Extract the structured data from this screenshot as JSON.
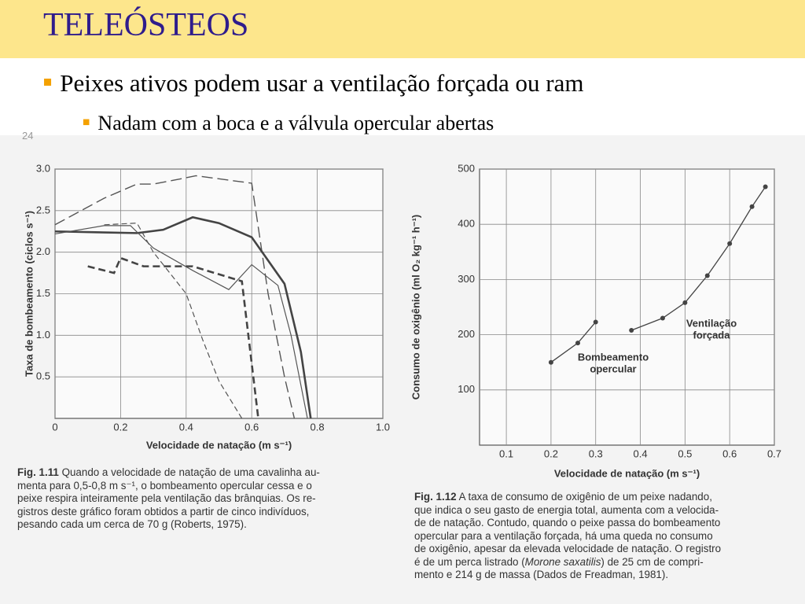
{
  "title": "TELEÓSTEOS",
  "bullets": [
    {
      "text": "Peixes ativos podem usar a ventilação forçada ou ram",
      "sub": [
        "Nadam com a boca e a  válvula opercular abertas"
      ]
    }
  ],
  "page_number": "24",
  "chart_data": [
    {
      "type": "line",
      "y_label": "Taxa de bombeamento (ciclos s⁻¹)",
      "x_label": "Velocidade de natação (m s⁻¹)",
      "xlim": [
        0,
        1
      ],
      "ylim": [
        0,
        3
      ],
      "grid": true,
      "xticks": [
        0,
        0.2,
        0.4,
        0.6,
        0.8,
        {
          "value": 1,
          "label": "1.0"
        }
      ],
      "yticks": [
        0.5,
        {
          "value": 1,
          "label": "1.0"
        },
        1.5,
        {
          "value": 2,
          "label": "2.0"
        },
        2.5,
        {
          "value": 3,
          "label": "3.0"
        }
      ],
      "series": [
        {
          "color": "#555555",
          "style": "long-dash",
          "x": [
            0,
            0.15,
            0.25,
            0.3,
            0.38,
            0.43,
            0.6,
            0.62,
            0.65,
            0.7,
            0.73
          ],
          "values": [
            2.33,
            2.65,
            2.82,
            2.82,
            2.88,
            2.92,
            2.83,
            2.3,
            1.5,
            0.5,
            0
          ]
        },
        {
          "color": "#444444",
          "style": "thick",
          "x": [
            0,
            0.25,
            0.33,
            0.42,
            0.5,
            0.6,
            0.7,
            0.75,
            0.78
          ],
          "values": [
            2.25,
            2.23,
            2.27,
            2.42,
            2.35,
            2.18,
            1.62,
            0.8,
            0
          ]
        },
        {
          "color": "#555555",
          "style": "thin",
          "x": [
            0,
            0.15,
            0.23,
            0.3,
            0.42,
            0.53,
            0.6,
            0.68,
            0.72,
            0.77
          ],
          "values": [
            2.22,
            2.32,
            2.32,
            2.05,
            1.78,
            1.55,
            1.85,
            1.6,
            1,
            0
          ]
        },
        {
          "color": "#555555",
          "style": "dash",
          "x": [
            0.15,
            0.25,
            0.3,
            0.4,
            0.45,
            0.5,
            0.57
          ],
          "values": [
            2.33,
            2.35,
            2,
            1.5,
            0.95,
            0.45,
            0
          ]
        },
        {
          "color": "#444444",
          "style": "thick-dash",
          "x": [
            0.1,
            0.18,
            0.2,
            0.27,
            0.42,
            0.57,
            0.62
          ],
          "values": [
            1.83,
            1.75,
            1.93,
            1.83,
            1.83,
            1.65,
            0
          ]
        }
      ],
      "caption": {
        "label": "Fig. 1.11",
        "lines": [
          " Quando a velocidade de natação de uma cavalinha au-",
          "menta para 0,5-0,8 m s⁻¹, o bombeamento opercular cessa e o",
          "peixe respira inteiramente pela ventilação das brânquias. Os re-",
          "gistros deste gráfico foram obtidos a partir de cinco indivíduos,",
          "pesando cada um cerca de 70 g (Roberts, 1975)."
        ]
      }
    },
    {
      "type": "line",
      "y_label": "Consumo de oxigênio (ml O₂ kg⁻¹ h⁻¹)",
      "x_label": "Velocidade de natação (m s⁻¹)",
      "xlim": [
        0.04,
        0.7
      ],
      "ylim": [
        0,
        500
      ],
      "grid": true,
      "xticks": [
        0.1,
        0.2,
        0.3,
        0.4,
        0.5,
        0.6,
        0.7
      ],
      "yticks": [
        100,
        200,
        300,
        400,
        500
      ],
      "series": [
        {
          "color": "#444444",
          "style": "markers",
          "x": [
            0.2,
            0.26,
            0.3
          ],
          "values": [
            150,
            185,
            223
          ]
        },
        {
          "color": "#444444",
          "style": "markers",
          "x": [
            0.38,
            0.45,
            0.5,
            0.55,
            0.6,
            0.65,
            0.68
          ],
          "values": [
            208,
            230,
            258,
            307,
            365,
            432,
            468
          ]
        }
      ],
      "annotations": [
        {
          "text": [
            "Bombeamento",
            "opercular"
          ]
        },
        {
          "text": [
            "Ventilação",
            "forçada"
          ]
        }
      ],
      "caption": {
        "label": "Fig. 1.12",
        "lines": [
          " A taxa de consumo de oxigênio de um peixe nadando,",
          "que indica o seu gasto de energia total, aumenta com a velocida-",
          "de de natação. Contudo, quando o peixe passa do bombeamento",
          "opercular para a ventilação forçada, há uma queda no consumo",
          "de oxigênio, apesar da elevada velocidade de natação. O registro",
          [
            "é de um perca listrado (",
            "Morone saxatilis",
            ") de 25 cm de compri-"
          ],
          "mento e 214 g de massa (Dados de Freadman, 1981)."
        ]
      }
    }
  ]
}
